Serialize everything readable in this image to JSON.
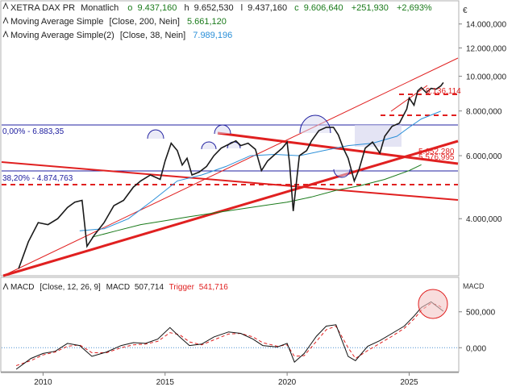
{
  "header": {
    "instrument": "XETRA DAX PR",
    "interval": "Monatlich",
    "ohlc": [
      {
        "key": "o",
        "value": "9.437,160"
      },
      {
        "key": "h",
        "value": "9.652,530"
      },
      {
        "key": "l",
        "value": "9.437,160"
      },
      {
        "key": "c",
        "value": "9.606,640"
      }
    ],
    "change_abs": "+251,930",
    "change_pct": "+2,693%"
  },
  "indicators": [
    {
      "label": "Moving Average Simple",
      "params": "[Close, 200, Nein]",
      "value": "5.661,120",
      "color": "#1a7a1a"
    },
    {
      "label": "Moving Average Simple(2)",
      "params": "[Close, 38, Nein]",
      "value": "7.989,196",
      "color": "#2a8fd8"
    }
  ],
  "currency_symbol": "€",
  "price_axis_ticks": [
    "14.000,000",
    "12.000,000",
    "10.000,000",
    "8.000,000",
    "6.000,000",
    "4.000,000"
  ],
  "fib_labels": {
    "level0": "0,00% - 6.883,35",
    "level382": "38,20% - 4.874,763"
  },
  "price_markers": [
    {
      "label": "9.136,114",
      "value": 9136
    },
    {
      "label": "5.652,280",
      "value": 5652
    },
    {
      "label": "5.576,995",
      "value": 5577
    }
  ],
  "macd": {
    "title": "MACD",
    "params": "[Close, 12, 26, 9]",
    "label": "MACD",
    "value": "507,714",
    "trigger_label": "Trigger",
    "trigger_value": "541,716",
    "axis_label": "MACD",
    "ticks": [
      "500,000",
      "0,000"
    ]
  },
  "x_axis_ticks": [
    "2010",
    "2015",
    "2020",
    "2025"
  ],
  "colors": {
    "ohlc_open": "#1a7a1a",
    "change": "#1a7a1a",
    "price_line": "#1a1a1a",
    "red": "#e02020",
    "fib": "#2020a0",
    "ma200": "#1a7a1a",
    "ma38": "#2a8fd8",
    "macd": "#111111",
    "trigger": "#e02020",
    "highlight": "#2020a0"
  },
  "chart_data": {
    "type": "line",
    "title": "XETRA DAX PR",
    "ylim": [
      2800,
      16000
    ],
    "y_scale": "log",
    "x_range": [
      2008.5,
      2026.9
    ],
    "series": [
      {
        "name": "XETRA DAX PR",
        "x": [
          2009.0,
          2009.4,
          2009.8,
          2010.2,
          2010.6,
          2011.0,
          2011.3,
          2011.6,
          2011.8,
          2012.1,
          2012.5,
          2012.9,
          2013.3,
          2013.7,
          2014.0,
          2014.4,
          2014.8,
          2015.0,
          2015.25,
          2015.5,
          2015.7,
          2015.9,
          2016.1,
          2016.4,
          2016.7,
          2017.0,
          2017.3,
          2017.6,
          2017.9,
          2018.1,
          2018.4,
          2018.7,
          2018.95,
          2019.2,
          2019.5,
          2019.8,
          2020.0,
          2020.1,
          2020.25,
          2020.5,
          2020.8,
          2021.0,
          2021.3,
          2021.6,
          2021.9,
          2022.1,
          2022.3,
          2022.5,
          2022.75,
          2022.95,
          2023.2,
          2023.5,
          2023.8,
          2024.0,
          2024.3,
          2024.6,
          2024.9,
          2025.0,
          2025.2,
          2025.35,
          2025.5,
          2025.7,
          2025.9,
          2026.1,
          2026.3,
          2026.4
        ],
        "values": [
          2900,
          3450,
          3900,
          3850,
          4000,
          4300,
          4450,
          4500,
          3350,
          3600,
          3900,
          4350,
          4500,
          4900,
          5100,
          5300,
          5150,
          5800,
          6500,
          6200,
          5650,
          5900,
          5300,
          5400,
          5600,
          6000,
          6300,
          6450,
          6600,
          6400,
          6500,
          6250,
          5450,
          5800,
          6050,
          6300,
          6550,
          5700,
          4200,
          6000,
          6200,
          6600,
          7050,
          7200,
          7200,
          6850,
          6300,
          5900,
          5100,
          5500,
          6300,
          6550,
          6100,
          6800,
          7250,
          7400,
          8100,
          8700,
          8300,
          9100,
          9300,
          9000,
          9250,
          9200,
          9400,
          9606
        ]
      },
      {
        "name": "Moving Average Simple",
        "x": [
          2012.0,
          2013.0,
          2014.0,
          2015.0,
          2016.0,
          2017.0,
          2018.0,
          2019.0,
          2020.0,
          2021.0,
          2022.0,
          2023.0,
          2024.0,
          2025.0,
          2025.5
        ],
        "values": [
          3550,
          3700,
          3850,
          3950,
          4050,
          4150,
          4250,
          4350,
          4450,
          4600,
          4800,
          4950,
          5150,
          5450,
          5660
        ]
      },
      {
        "name": "Moving Average Simple(2)",
        "x": [
          2011.5,
          2012.5,
          2013.5,
          2014.5,
          2015.5,
          2016.5,
          2017.5,
          2018.5,
          2019.5,
          2020.5,
          2021.5,
          2022.5,
          2023.5,
          2024.5,
          2025.0,
          2025.5,
          2026.3
        ],
        "values": [
          3700,
          3750,
          4000,
          4500,
          5100,
          5300,
          5600,
          6000,
          6050,
          6000,
          6200,
          6400,
          6500,
          6800,
          7200,
          7600,
          7990
        ]
      }
    ],
    "macd": {
      "x": [
        2008.9,
        2009.5,
        2010.0,
        2010.5,
        2011.0,
        2011.5,
        2012.0,
        2012.6,
        2013.2,
        2013.7,
        2014.2,
        2014.7,
        2015.2,
        2015.6,
        2016.0,
        2016.5,
        2017.0,
        2017.6,
        2018.1,
        2018.6,
        2019.0,
        2019.6,
        2020.0,
        2020.3,
        2020.7,
        2021.2,
        2021.6,
        2022.0,
        2022.5,
        2022.8,
        2023.3,
        2023.8,
        2024.3,
        2024.8,
        2025.2,
        2025.5,
        2025.9,
        2026.2,
        2026.4
      ],
      "macd": [
        -300,
        -150,
        -80,
        -50,
        60,
        30,
        -120,
        -60,
        30,
        70,
        60,
        120,
        280,
        150,
        30,
        50,
        150,
        220,
        200,
        120,
        30,
        10,
        60,
        -200,
        -80,
        160,
        300,
        320,
        -120,
        -180,
        20,
        100,
        200,
        300,
        440,
        560,
        640,
        560,
        508
      ],
      "trigger": [
        -250,
        -180,
        -100,
        -60,
        20,
        40,
        -70,
        -70,
        0,
        40,
        50,
        90,
        210,
        180,
        80,
        40,
        110,
        190,
        200,
        150,
        70,
        20,
        40,
        -120,
        -110,
        90,
        250,
        300,
        0,
        -150,
        -40,
        60,
        160,
        270,
        400,
        520,
        620,
        590,
        542
      ],
      "ylim": [
        -300,
        800
      ]
    }
  }
}
